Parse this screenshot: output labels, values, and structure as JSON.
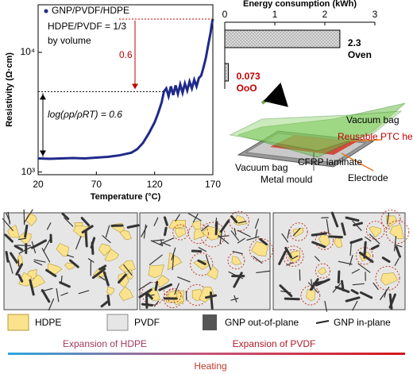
{
  "chart_data": [
    {
      "type": "line",
      "x_label": "Temperature (°C)",
      "y_label": "Resistivity (Ω·cm)",
      "x": [
        20,
        30,
        40,
        50,
        60,
        70,
        80,
        90,
        100,
        105,
        110,
        115,
        120,
        123,
        126,
        128,
        130,
        132,
        134,
        136,
        138,
        140,
        142,
        144,
        146,
        148,
        150,
        152,
        154,
        156,
        158,
        160,
        162,
        164,
        166,
        168,
        169,
        170
      ],
      "series": [
        {
          "name": "GNP/PVDF/HDPE",
          "color": "#1f2a8a",
          "values": [
            1300,
            1290,
            1300,
            1310,
            1300,
            1320,
            1340,
            1380,
            1450,
            1550,
            1750,
            2100,
            2600,
            3100,
            3800,
            4700,
            5000,
            4300,
            5200,
            4400,
            5300,
            4500,
            5400,
            4600,
            5500,
            4800,
            5700,
            5000,
            5900,
            5200,
            6100,
            6400,
            7500,
            9000,
            11500,
            14500,
            17000,
            19000
          ]
        }
      ],
      "xlim": [
        20,
        170
      ],
      "xticks": [
        20,
        70,
        120,
        170
      ],
      "ylim": [
        950,
        25000
      ],
      "log_y": true,
      "yticks": [
        {
          "value": 1000,
          "label": "10³"
        },
        {
          "value": 10000,
          "label": "10⁴"
        }
      ],
      "annotations": [
        "HDPE/PVDF = 1/3",
        "by volume",
        "0.6",
        "log(ρp/ρRT) = 0.6"
      ]
    },
    {
      "type": "hbar",
      "title": "Energy consumption (kWh)",
      "categories": [
        "Oven",
        "OoO"
      ],
      "values": [
        2.3,
        0.073
      ],
      "label_colors": [
        "#000000",
        "#c00000"
      ],
      "color": "#d9d9d9",
      "xlim": [
        0,
        3
      ],
      "xticks": [
        0,
        1,
        2,
        3
      ]
    }
  ],
  "diagram": {
    "labels": [
      "Vacuum bag",
      "Reusable PTC heating film",
      "Vacuum bag",
      "CFRP laminate",
      "Electrode",
      "Metal mould"
    ],
    "legend": [
      "HDPE",
      "PVDF",
      "GNP out-of-plane",
      "GNP in-plane"
    ],
    "process": [
      "Expansion of HDPE",
      "Expansion of PVDF",
      "Heating"
    ]
  }
}
